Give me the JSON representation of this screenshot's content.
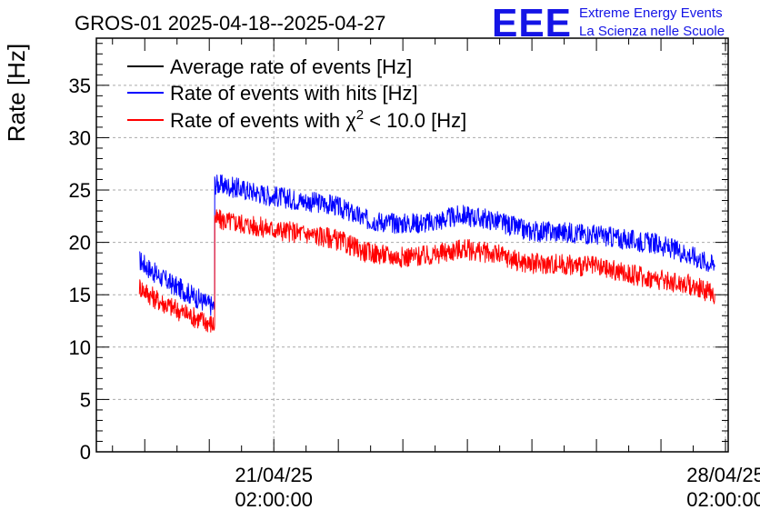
{
  "header": {
    "title": "GROS-01 2025-04-18--2025-04-27",
    "logo_text": "EEE",
    "logo_line1": "Extreme Energy Events",
    "logo_line2": "La Scienza nelle Scuole"
  },
  "colors": {
    "average": "#000000",
    "hits": "#0000ff",
    "chi2": "#ff0000",
    "logo": "#1414e6",
    "grid": "#aaaaaa"
  },
  "chart_data": {
    "type": "line",
    "title": "GROS-01 2025-04-18--2025-04-27",
    "ylabel": "Rate [Hz]",
    "xlabel": "",
    "ylim": [
      0,
      39.5
    ],
    "xlim": [
      "2025-04-18 08:00",
      "2025-04-28 03:00"
    ],
    "yticks": [
      0,
      5,
      10,
      15,
      20,
      25,
      30,
      35
    ],
    "xticks": [
      {
        "x": "2025-04-21 02:00",
        "line1": "21/04/25",
        "line2": "02:00:00"
      },
      {
        "x": "2025-04-28 02:00",
        "line1": "28/04/25",
        "line2": "02:00:00"
      }
    ],
    "grid": true,
    "legend_position": "top-left",
    "legend": [
      {
        "series": "average",
        "label": "Average rate of events [Hz]"
      },
      {
        "series": "hits",
        "label": "Rate of events with hits [Hz]"
      },
      {
        "series": "chi2",
        "label_main": "Rate of events with χ",
        "label_sup": "2",
        "label_tail": " < 10.0 [Hz]"
      }
    ],
    "series": [
      {
        "id": "hits",
        "x": [
          "2025-04-19 00:00",
          "2025-04-19 06:00",
          "2025-04-19 12:00",
          "2025-04-19 18:00",
          "2025-04-20 00:00",
          "2025-04-20 04:00",
          "2025-04-20 04:01",
          "2025-04-20 12:00",
          "2025-04-21 00:00",
          "2025-04-21 12:00",
          "2025-04-22 00:00",
          "2025-04-22 12:00",
          "2025-04-23 00:00",
          "2025-04-23 12:00",
          "2025-04-24 00:00",
          "2025-04-24 12:00",
          "2025-04-25 00:00",
          "2025-04-25 12:00",
          "2025-04-26 00:00",
          "2025-04-26 12:00",
          "2025-04-27 00:00",
          "2025-04-27 12:00",
          "2025-04-27 22:00"
        ],
        "y": [
          18.3,
          17.0,
          16.0,
          15.2,
          14.3,
          13.8,
          25.6,
          25.2,
          24.5,
          24.0,
          23.6,
          22.2,
          21.8,
          21.9,
          22.6,
          22.1,
          21.1,
          21.0,
          20.8,
          20.3,
          19.9,
          18.9,
          17.8
        ]
      },
      {
        "id": "chi2",
        "x": [
          "2025-04-19 00:00",
          "2025-04-19 06:00",
          "2025-04-19 12:00",
          "2025-04-19 18:00",
          "2025-04-20 00:00",
          "2025-04-20 04:00",
          "2025-04-20 04:01",
          "2025-04-20 12:00",
          "2025-04-21 00:00",
          "2025-04-21 12:00",
          "2025-04-22 00:00",
          "2025-04-22 12:00",
          "2025-04-23 00:00",
          "2025-04-23 12:00",
          "2025-04-24 00:00",
          "2025-04-24 12:00",
          "2025-04-25 00:00",
          "2025-04-25 12:00",
          "2025-04-26 00:00",
          "2025-04-26 12:00",
          "2025-04-27 00:00",
          "2025-04-27 12:00",
          "2025-04-27 22:00"
        ],
        "y": [
          15.8,
          14.6,
          13.8,
          13.1,
          12.5,
          12.1,
          22.2,
          21.9,
          21.3,
          20.9,
          20.4,
          19.1,
          18.6,
          18.7,
          19.4,
          18.9,
          18.0,
          17.9,
          17.7,
          17.1,
          16.5,
          16.0,
          15.1
        ]
      }
    ]
  }
}
